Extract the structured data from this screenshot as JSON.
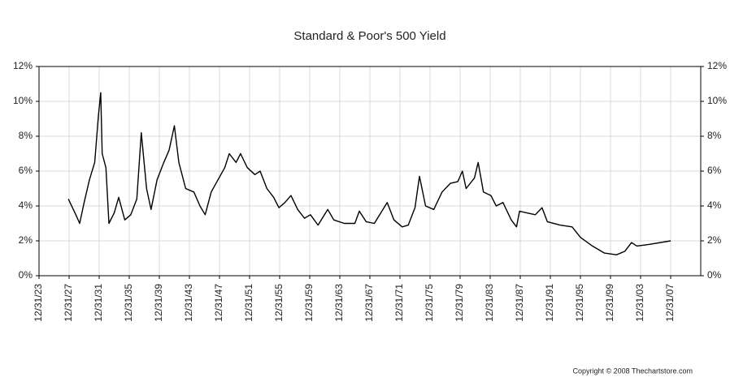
{
  "chart_data": {
    "type": "line",
    "title": "Standard & Poor's 500 Yield",
    "footer": "Copyright © 2008 Thechartstore.com",
    "x": [
      1927.9,
      1928.9,
      1929.4,
      1930.0,
      1930.7,
      1931.4,
      1931.9,
      1932.2,
      1932.4,
      1932.9,
      1933.3,
      1934.0,
      1934.6,
      1935.4,
      1936.2,
      1937.0,
      1937.6,
      1938.3,
      1938.9,
      1939.7,
      1940.6,
      1941.3,
      1942.0,
      1942.6,
      1943.5,
      1944.6,
      1945.4,
      1946.1,
      1946.9,
      1947.8,
      1948.7,
      1949.3,
      1950.2,
      1950.8,
      1951.7,
      1952.7,
      1953.4,
      1954.3,
      1955.2,
      1955.9,
      1956.7,
      1957.5,
      1958.4,
      1959.3,
      1960.1,
      1961.1,
      1962.4,
      1963.2,
      1964.6,
      1966.0,
      1966.6,
      1967.5,
      1968.6,
      1970.3,
      1971.2,
      1972.3,
      1973.1,
      1974.0,
      1974.6,
      1975.4,
      1976.5,
      1977.6,
      1978.7,
      1979.7,
      1980.3,
      1980.8,
      1981.9,
      1982.4,
      1983.1,
      1984.1,
      1984.8,
      1985.7,
      1986.8,
      1987.5,
      1987.9,
      1988.9,
      1990.0,
      1990.9,
      1991.6,
      1993.3,
      1994.9,
      1996.0,
      1997.6,
      1999.2,
      2000.8,
      2001.9,
      2002.8,
      2003.5,
      2005.2,
      2008.0
    ],
    "series": [
      {
        "color": "#000000",
        "values": [
          4.4,
          3.5,
          3.0,
          4.2,
          5.5,
          6.5,
          9.2,
          10.5,
          7.0,
          6.2,
          3.0,
          3.6,
          4.5,
          3.2,
          3.5,
          4.4,
          8.2,
          5.0,
          3.8,
          5.5,
          6.5,
          7.2,
          8.6,
          6.5,
          5.0,
          4.8,
          4.0,
          3.5,
          4.8,
          5.5,
          6.2,
          7.0,
          6.5,
          7.0,
          6.2,
          5.8,
          6.0,
          5.0,
          4.5,
          3.9,
          4.2,
          4.6,
          3.8,
          3.3,
          3.5,
          2.9,
          3.8,
          3.2,
          3.0,
          3.0,
          3.7,
          3.1,
          3.0,
          4.2,
          3.2,
          2.8,
          2.9,
          3.9,
          5.7,
          4.0,
          3.8,
          4.8,
          5.3,
          5.4,
          6.0,
          5.0,
          5.6,
          6.5,
          4.8,
          4.6,
          4.0,
          4.2,
          3.2,
          2.8,
          3.7,
          3.6,
          3.5,
          3.9,
          3.1,
          2.9,
          2.8,
          2.2,
          1.7,
          1.3,
          1.2,
          1.4,
          1.9,
          1.7,
          1.8,
          2.0
        ]
      }
    ],
    "xlim": [
      1924,
      2012
    ],
    "xticks": [
      {
        "value": 1924,
        "label": "12/31/23"
      },
      {
        "value": 1928,
        "label": "12/31/27"
      },
      {
        "value": 1932,
        "label": "12/31/31"
      },
      {
        "value": 1936,
        "label": "12/31/35"
      },
      {
        "value": 1940,
        "label": "12/31/39"
      },
      {
        "value": 1944,
        "label": "12/31/43"
      },
      {
        "value": 1948,
        "label": "12/31/47"
      },
      {
        "value": 1952,
        "label": "12/31/51"
      },
      {
        "value": 1956,
        "label": "12/31/55"
      },
      {
        "value": 1960,
        "label": "12/31/59"
      },
      {
        "value": 1964,
        "label": "12/31/63"
      },
      {
        "value": 1968,
        "label": "12/31/67"
      },
      {
        "value": 1972,
        "label": "12/31/71"
      },
      {
        "value": 1976,
        "label": "12/31/75"
      },
      {
        "value": 1980,
        "label": "12/31/79"
      },
      {
        "value": 1984,
        "label": "12/31/83"
      },
      {
        "value": 1988,
        "label": "12/31/87"
      },
      {
        "value": 1992,
        "label": "12/31/91"
      },
      {
        "value": 1996,
        "label": "12/31/95"
      },
      {
        "value": 2000,
        "label": "12/31/99"
      },
      {
        "value": 2004,
        "label": "12/31/03"
      },
      {
        "value": 2008,
        "label": "12/31/07"
      }
    ],
    "ylim": [
      0,
      12
    ],
    "yticks": [
      {
        "value": 0,
        "label": "0%"
      },
      {
        "value": 2,
        "label": "2%"
      },
      {
        "value": 4,
        "label": "4%"
      },
      {
        "value": 6,
        "label": "6%"
      },
      {
        "value": 8,
        "label": "8%"
      },
      {
        "value": 10,
        "label": "10%"
      },
      {
        "value": 12,
        "label": "12%"
      }
    ],
    "y2lim": [
      0,
      12
    ],
    "y2ticks": [
      {
        "value": 0,
        "label": "0%"
      },
      {
        "value": 2,
        "label": "2%"
      },
      {
        "value": 4,
        "label": "4%"
      },
      {
        "value": 6,
        "label": "6%"
      },
      {
        "value": 8,
        "label": "8%"
      },
      {
        "value": 10,
        "label": "10%"
      },
      {
        "value": 12,
        "label": "12%"
      }
    ],
    "grid": true
  }
}
